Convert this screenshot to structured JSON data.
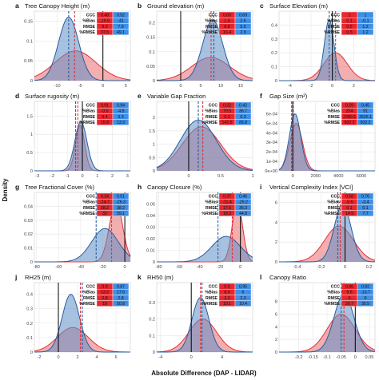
{
  "figure": {
    "ylabel": "Density",
    "xlabel": "Absolute Difference (DAP - LIDAR)",
    "colors": {
      "dap": "#2a5d9f",
      "lidar": "#e0323a",
      "dap_fill": "#5f8fc6",
      "lidar_fill": "#e96b70",
      "grid": "#e6e6e6"
    }
  },
  "chart_data": [
    {
      "type": "area",
      "letter": "a",
      "title": "Tree Canopy Height (m)",
      "xlim": [
        -15,
        6
      ],
      "xticks": [
        -10,
        -5,
        0,
        5
      ],
      "ylim": [
        0,
        0.175
      ],
      "yticks": [
        0,
        0.05,
        0.1,
        0.15
      ],
      "series": [
        {
          "center": -7.5,
          "sigma": 2.2,
          "peak": 0.16
        },
        {
          "center": -6,
          "sigma": 4.5,
          "peak": 0.075
        }
      ],
      "mean_lines": [
        -7.5,
        -6.2
      ],
      "zero": 0,
      "stats": {
        "rows": [
          "CCC",
          "%Bias",
          "RMSE",
          "%RMSE"
        ],
        "red": [
          "0.48",
          "-19.9",
          "9.0",
          "37.5"
        ],
        "blue": [
          "0.52",
          "-41",
          "7.9",
          "49.1"
        ]
      }
    },
    {
      "type": "area",
      "letter": "b",
      "title": "Ground elevation (m)",
      "xlim": [
        -6,
        18
      ],
      "xticks": [
        0,
        5,
        10,
        15
      ],
      "ylim": [
        0,
        0.24
      ],
      "yticks": [
        0,
        0.05,
        0.1,
        0.15,
        0.2
      ],
      "series": [
        {
          "center": 8,
          "sigma": 2.5,
          "peak": 0.21
        },
        {
          "center": 7.5,
          "sigma": 4.8,
          "peak": 0.08
        }
      ],
      "mean_lines": [
        8.3,
        7.6
      ],
      "zero": 0,
      "stats": {
        "rows": [
          "CCC",
          "%Bias",
          "RMSE",
          "%RMSE"
        ],
        "red": [
          "0.60",
          "1.4",
          "8.8",
          "16.4"
        ],
        "blue": [
          "0.69",
          "2.6",
          "5.5",
          "2.9"
        ]
      }
    },
    {
      "type": "area",
      "letter": "c",
      "title": "Surface Elevation (m)",
      "xlim": [
        -5,
        4
      ],
      "xticks": [
        -4,
        -2,
        0,
        2
      ],
      "ylim": [
        0,
        0.5
      ],
      "yticks": [
        0,
        0.1,
        0.2,
        0.3,
        0.4
      ],
      "series": [
        {
          "center": -0.3,
          "sigma": 0.45,
          "peak": 0.44
        },
        {
          "center": 0.3,
          "sigma": 1.1,
          "peak": 0.2
        }
      ],
      "mean_lines": [
        -0.3,
        0.3
      ],
      "zero": 0,
      "stats": {
        "rows": [
          "CCC",
          "%Bias",
          "RMSE",
          "%RMSE"
        ],
        "red": [
          "1",
          "0.1",
          "0.5",
          "0.5"
        ],
        "blue": [
          "1",
          "-0.1",
          "1.2",
          "1.2"
        ]
      }
    },
    {
      "type": "area",
      "letter": "d",
      "title": "Surface rugosity (m)",
      "xlim": [
        -3.2,
        3.2
      ],
      "xticks": [
        -3,
        -2,
        -1,
        0,
        1,
        2,
        3
      ],
      "ylim": [
        0,
        1.9
      ],
      "yticks": [
        0,
        0.5,
        1,
        1.5
      ],
      "series": [
        {
          "center": -0.1,
          "sigma": 0.4,
          "peak": 1.35
        },
        {
          "center": -0.15,
          "sigma": 0.3,
          "peak": 1.25
        }
      ],
      "mean_lines": [
        -0.45,
        -0.3
      ],
      "zero": 0,
      "stats": {
        "rows": [
          "CCC",
          "%Bias",
          "RMSE",
          "%RMSE"
        ],
        "red": [
          "0.91",
          "-0.6",
          "0.4",
          "15.8"
        ],
        "blue": [
          "0.94",
          "-4.8",
          "0.3",
          "13.3"
        ]
      }
    },
    {
      "type": "area",
      "letter": "e",
      "title": "Variable Gap Fraction",
      "xlim": [
        -0.5,
        1
      ],
      "xticks": [
        0,
        0.5,
        1
      ],
      "ylim": [
        0,
        2.6
      ],
      "yticks": [
        0,
        0.5,
        1,
        1.5,
        2
      ],
      "series": [
        {
          "center": 0.15,
          "sigma": 0.28,
          "peak": 1.9
        },
        {
          "center": 0.2,
          "sigma": 0.3,
          "peak": 1.65
        }
      ],
      "mean_lines": [
        0.15,
        0.22
      ],
      "zero": 0,
      "stats": {
        "rows": [
          "CCC",
          "%Bias",
          "RMSE",
          "%RMSE"
        ],
        "red": [
          "0.22",
          "79.5",
          "0.3",
          "143.5"
        ],
        "blue": [
          "0.42",
          "36.7",
          "0.3",
          "85.8"
        ]
      }
    },
    {
      "type": "area",
      "letter": "f",
      "title": "Gap Size (m²)",
      "xlim": [
        -1200,
        7200
      ],
      "xticks": [
        0,
        2000,
        4000,
        6000
      ],
      "ylim": [
        0,
        0.00073
      ],
      "yticks": [
        0,
        0.0001,
        0.0002,
        0.0003,
        0.0004,
        0.0005,
        0.0006
      ],
      "ytick_labels": [
        "0e+00",
        "1e-04",
        "2e-04",
        "3e-04",
        "4e-04",
        "5e-04",
        "6e-04"
      ],
      "series": [
        {
          "center": 200,
          "sigma": 500,
          "peak": 0.0006
        },
        {
          "center": 300,
          "sigma": 550,
          "peak": 0.0005
        }
      ],
      "mean_lines": [
        -100,
        50
      ],
      "zero": 0,
      "stats": {
        "rows": [
          "CCC",
          "%Bias",
          "RMSE",
          "%RMSE"
        ],
        "red": [
          "0.29",
          "204",
          "2380.5",
          "502.2"
        ],
        "blue": [
          "0.45",
          "91",
          "3526.1",
          "502.2"
        ]
      }
    },
    {
      "type": "area",
      "letter": "g",
      "title": "Tree Fractional Cover (%)",
      "xlim": [
        -82,
        5
      ],
      "xticks": [
        -80,
        -60,
        -40,
        -20,
        0
      ],
      "ylim": [
        0,
        0.05
      ],
      "yticks": [
        0,
        0.01,
        0.02,
        0.03,
        0.04
      ],
      "series": [
        {
          "center": -18,
          "sigma": 12,
          "peak": 0.024
        },
        {
          "center": -8,
          "sigma": 6,
          "peak": 0.043
        }
      ],
      "mean_lines": [
        -26,
        -12
      ],
      "zero": 0,
      "stats": {
        "rows": [
          "CCC",
          "%Bias",
          "RMSE",
          "%RMSE"
        ],
        "red": [
          "0.34",
          "-14.7",
          "28.2",
          "33"
        ],
        "blue": [
          "0.51",
          "-26.3",
          "38.2",
          "59.1"
        ]
      }
    },
    {
      "type": "area",
      "letter": "h",
      "title": "Canopy Closure (%)",
      "xlim": [
        -82,
        12
      ],
      "xticks": [
        -80,
        -60,
        -40,
        -20,
        0
      ],
      "ylim": [
        0,
        0.06
      ],
      "yticks": [
        0,
        0.01,
        0.02,
        0.03,
        0.04,
        0.05
      ],
      "series": [
        {
          "center": -14,
          "sigma": 14,
          "peak": 0.022
        },
        {
          "center": -3,
          "sigma": 5,
          "peak": 0.052
        }
      ],
      "mean_lines": [
        -22,
        -8
      ],
      "zero": 0,
      "stats": {
        "rows": [
          "CCC",
          "%Bias",
          "RMSE",
          "%RMSE"
        ],
        "red": [
          "0.37",
          "-11.4",
          "17.5",
          "18.3"
        ],
        "blue": [
          "0.46",
          "-25.2",
          "36.3",
          "44.8"
        ]
      }
    },
    {
      "type": "area",
      "letter": "i",
      "title": "Vertical Complexity Index [VCI]",
      "xlim": [
        -0.55,
        0.25
      ],
      "xticks": [
        -0.4,
        -0.2,
        0,
        0.2
      ],
      "ylim": [
        0,
        7
      ],
      "yticks": [
        0,
        2,
        4,
        6
      ],
      "series": [
        {
          "center": -0.02,
          "sigma": 0.07,
          "peak": 5.8
        },
        {
          "center": -0.05,
          "sigma": 0.12,
          "peak": 3.6
        }
      ],
      "mean_lines": [
        -0.06,
        -0.04
      ],
      "zero": 0,
      "stats": {
        "rows": [
          "CCC",
          "%Bias",
          "RMSE",
          "%RMSE"
        ],
        "red": [
          "0.58",
          "-5.6",
          "0.1",
          "14.9"
        ],
        "blue": [
          "0.76",
          "-3.4",
          "0.1",
          "7.7"
        ]
      }
    },
    {
      "type": "area",
      "letter": "j",
      "title": "RH25 (m)",
      "xlim": [
        -2.5,
        7.5
      ],
      "xticks": [
        -2,
        0,
        2,
        4,
        6
      ],
      "ylim": [
        0,
        0.48
      ],
      "yticks": [
        0,
        0.1,
        0.2,
        0.3,
        0.4
      ],
      "series": [
        {
          "center": 1.3,
          "sigma": 0.9,
          "peak": 0.4
        },
        {
          "center": 1.5,
          "sigma": 1.6,
          "peak": 0.17
        }
      ],
      "mean_lines": [
        2.5,
        2.3
      ],
      "zero": 0,
      "stats": {
        "rows": [
          "CCC",
          "%Bias",
          "RMSE",
          "%RMSE"
        ],
        "red": [
          "0.9",
          "13.2",
          "2.8",
          "18"
        ],
        "blue": [
          "0.87",
          "17.6",
          "2.8",
          "50.8"
        ]
      }
    },
    {
      "type": "area",
      "letter": "k",
      "title": "RH50 (m)",
      "xlim": [
        -4.5,
        8
      ],
      "xticks": [
        -4,
        0,
        4
      ],
      "ylim": [
        0,
        0.42
      ],
      "yticks": [
        0,
        0.1,
        0.2,
        0.3
      ],
      "series": [
        {
          "center": 1.2,
          "sigma": 1.1,
          "peak": 0.33
        },
        {
          "center": 1.5,
          "sigma": 1.8,
          "peak": 0.2
        }
      ],
      "mean_lines": [
        1.4,
        1.2
      ],
      "zero": 0,
      "stats": {
        "rows": [
          "CCC",
          "%Bias",
          "RMSE",
          "%RMSE"
        ],
        "red": [
          "0.9",
          "8.4",
          "2.2",
          "10.1"
        ],
        "blue": [
          "0.95",
          "6",
          "2.3",
          "10.4"
        ]
      }
    },
    {
      "type": "area",
      "letter": "l",
      "title": "Canopy Ratio",
      "xlim": [
        -0.27,
        0.07
      ],
      "xticks": [
        -0.2,
        -0.15,
        -0.1,
        -0.05,
        0,
        0.05
      ],
      "ylim": [
        0,
        11
      ],
      "yticks": [
        0,
        2,
        4,
        6,
        8
      ],
      "series": [
        {
          "center": -0.04,
          "sigma": 0.035,
          "peak": 9.2
        },
        {
          "center": -0.05,
          "sigma": 0.05,
          "peak": 6
        }
      ],
      "mean_lines": [
        -0.05,
        -0.04
      ],
      "zero": 0,
      "stats": {
        "rows": [
          "CCC",
          "%Bias",
          "RMSE",
          "%RMSE"
        ],
        "red": [
          "0.86",
          "9.6",
          "0",
          "20.7"
        ],
        "blue": [
          "0.82",
          "-13.7",
          "0",
          "35.5"
        ]
      }
    }
  ]
}
